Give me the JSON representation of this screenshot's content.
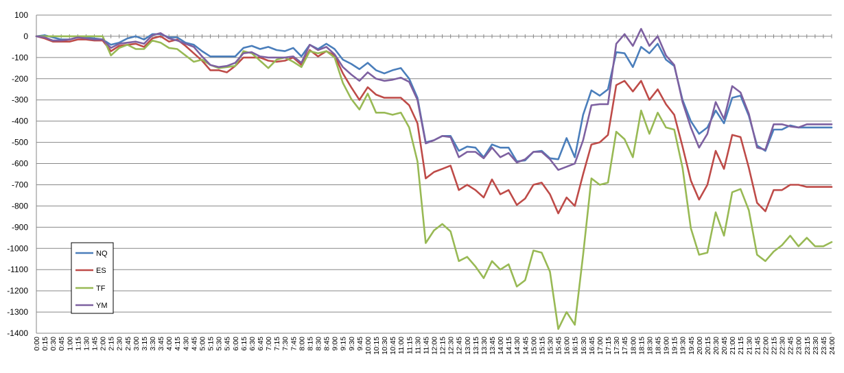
{
  "chart_data": {
    "type": "line",
    "title": "",
    "xlabel": "",
    "ylabel": "",
    "ylim": [
      -1400,
      100
    ],
    "ytick_step": 100,
    "grid": "horizontal",
    "legend_position": "bottom-left",
    "x": [
      "0:00",
      "0:15",
      "0:30",
      "0:45",
      "1:00",
      "1:15",
      "1:30",
      "1:45",
      "2:00",
      "2:15",
      "2:30",
      "2:45",
      "3:00",
      "3:15",
      "3:30",
      "3:45",
      "4:00",
      "4:15",
      "4:30",
      "4:45",
      "5:00",
      "5:15",
      "5:30",
      "5:45",
      "6:00",
      "6:15",
      "6:30",
      "6:45",
      "7:00",
      "7:15",
      "7:30",
      "7:45",
      "8:00",
      "8:15",
      "8:30",
      "8:45",
      "9:00",
      "9:15",
      "9:30",
      "9:45",
      "10:00",
      "10:15",
      "10:30",
      "10:45",
      "11:00",
      "11:15",
      "11:30",
      "11:45",
      "12:00",
      "12:15",
      "12:30",
      "12:45",
      "13:00",
      "13:15",
      "13:30",
      "13:45",
      "14:00",
      "14:15",
      "14:30",
      "14:45",
      "15:00",
      "15:15",
      "15:30",
      "15:45",
      "16:00",
      "16:15",
      "16:30",
      "16:45",
      "17:00",
      "17:15",
      "17:30",
      "17:45",
      "18:00",
      "18:15",
      "18:30",
      "18:45",
      "19:00",
      "19:15",
      "19:30",
      "19:45",
      "20:00",
      "20:15",
      "20:30",
      "20:45",
      "21:00",
      "21:15",
      "21:30",
      "21:45",
      "22:00",
      "22:15",
      "22:30",
      "22:45",
      "23:00",
      "23:15",
      "23:30",
      "23:45",
      "24:00"
    ],
    "series": [
      {
        "name": "NQ",
        "color": "#4a7ebb",
        "values": [
          0,
          5,
          -5,
          -15,
          -15,
          -5,
          -5,
          -10,
          -15,
          -40,
          -30,
          -10,
          0,
          -15,
          10,
          10,
          -5,
          -5,
          -30,
          -40,
          -70,
          -95,
          -95,
          -95,
          -95,
          -55,
          -45,
          -60,
          -50,
          -65,
          -70,
          -55,
          -95,
          -40,
          -60,
          -35,
          -60,
          -110,
          -130,
          -155,
          -125,
          -160,
          -175,
          -160,
          -150,
          -200,
          -290,
          -500,
          -490,
          -470,
          -470,
          -540,
          -520,
          -525,
          -570,
          -510,
          -525,
          -525,
          -590,
          -585,
          -545,
          -540,
          -575,
          -580,
          -480,
          -570,
          -370,
          -255,
          -280,
          -250,
          -75,
          -80,
          -145,
          -50,
          -80,
          -35,
          -110,
          -140,
          -300,
          -400,
          -460,
          -430,
          -350,
          -410,
          -290,
          -280,
          -375,
          -515,
          -540,
          -440,
          -440,
          -420,
          -430,
          -430,
          -430,
          -430,
          -430
        ]
      },
      {
        "name": "ES",
        "color": "#be4b48",
        "values": [
          0,
          -10,
          -25,
          -25,
          -25,
          -15,
          -15,
          -20,
          -20,
          -70,
          -45,
          -40,
          -35,
          -50,
          -10,
          0,
          -25,
          -15,
          -45,
          -80,
          -115,
          -160,
          -160,
          -170,
          -140,
          -100,
          -100,
          -100,
          -115,
          -120,
          -115,
          -100,
          -135,
          -65,
          -95,
          -70,
          -90,
          -175,
          -240,
          -300,
          -240,
          -275,
          -290,
          -290,
          -290,
          -325,
          -410,
          -670,
          -640,
          -625,
          -610,
          -725,
          -700,
          -725,
          -760,
          -675,
          -745,
          -725,
          -795,
          -765,
          -700,
          -690,
          -745,
          -835,
          -760,
          -800,
          -650,
          -510,
          -500,
          -465,
          -230,
          -210,
          -260,
          -210,
          -300,
          -250,
          -320,
          -370,
          -520,
          -680,
          -770,
          -700,
          -540,
          -625,
          -465,
          -475,
          -620,
          -785,
          -825,
          -725,
          -725,
          -700,
          -700,
          -710,
          -710,
          -710,
          -710
        ]
      },
      {
        "name": "TF",
        "color": "#98b954",
        "values": [
          0,
          0,
          0,
          0,
          0,
          0,
          0,
          0,
          0,
          -90,
          -55,
          -40,
          -60,
          -60,
          -20,
          -30,
          -55,
          -60,
          -90,
          -120,
          -110,
          -135,
          -150,
          -145,
          -140,
          -70,
          -80,
          -115,
          -150,
          -110,
          -100,
          -120,
          -145,
          -70,
          -80,
          -70,
          -100,
          -220,
          -295,
          -345,
          -270,
          -360,
          -360,
          -370,
          -360,
          -430,
          -590,
          -975,
          -915,
          -885,
          -920,
          -1060,
          -1040,
          -1085,
          -1140,
          -1060,
          -1100,
          -1075,
          -1180,
          -1150,
          -1010,
          -1020,
          -1110,
          -1380,
          -1300,
          -1360,
          -1030,
          -670,
          -700,
          -690,
          -450,
          -485,
          -570,
          -350,
          -460,
          -360,
          -430,
          -440,
          -620,
          -905,
          -1030,
          -1020,
          -830,
          -940,
          -735,
          -720,
          -820,
          -1030,
          -1060,
          -1015,
          -985,
          -940,
          -990,
          -950,
          -990,
          -990,
          -970
        ]
      },
      {
        "name": "YM",
        "color": "#7d60a0",
        "values": [
          0,
          -5,
          -20,
          -20,
          -15,
          -5,
          -10,
          -15,
          -15,
          -55,
          -35,
          -30,
          -25,
          -35,
          5,
          15,
          -10,
          -20,
          -35,
          -50,
          -95,
          -135,
          -145,
          -140,
          -125,
          -80,
          -75,
          -95,
          -100,
          -100,
          -100,
          -95,
          -125,
          -40,
          -65,
          -50,
          -85,
          -145,
          -180,
          -210,
          -170,
          -200,
          -210,
          -205,
          -195,
          -215,
          -300,
          -505,
          -490,
          -470,
          -475,
          -570,
          -545,
          -545,
          -575,
          -525,
          -570,
          -550,
          -595,
          -580,
          -545,
          -545,
          -580,
          -630,
          -615,
          -600,
          -490,
          -325,
          -320,
          -320,
          -35,
          10,
          -45,
          35,
          -45,
          0,
          -90,
          -135,
          -310,
          -430,
          -525,
          -460,
          -310,
          -390,
          -235,
          -265,
          -365,
          -525,
          -535,
          -415,
          -415,
          -425,
          -430,
          -415,
          -415,
          -415,
          -415
        ]
      }
    ]
  }
}
